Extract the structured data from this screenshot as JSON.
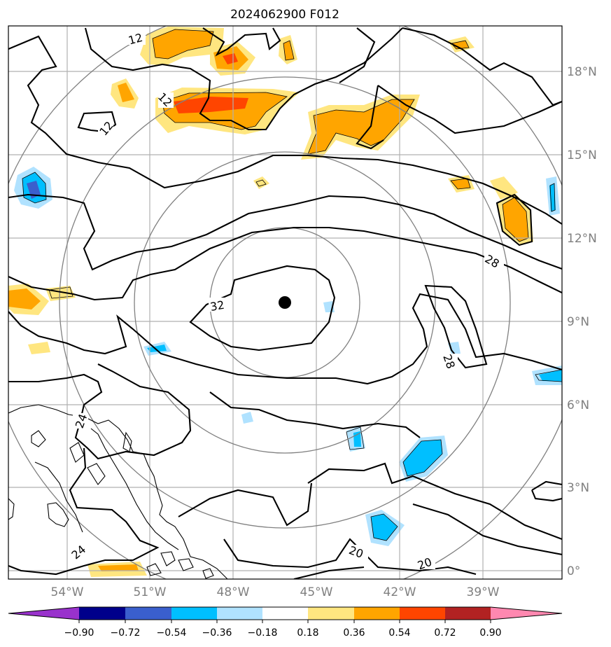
{
  "title": "2024062900 F012",
  "lon_ticks": [
    "54°W",
    "51°W",
    "48°W",
    "45°W",
    "42°W",
    "39°W"
  ],
  "lat_ticks": [
    "18°N",
    "15°N",
    "12°N",
    "9°N",
    "6°N",
    "3°N",
    "0°"
  ],
  "colorbar": {
    "labels": [
      "−0.90",
      "−0.72",
      "−0.54",
      "−0.36",
      "−0.18",
      "0.18",
      "0.36",
      "0.54",
      "0.72",
      "0.90"
    ],
    "colors": [
      "#9932cc",
      "#00008b",
      "#3a5fcd",
      "#00bfff",
      "#b0e2ff",
      "#ffffff",
      "#ffe680",
      "#ffa500",
      "#ff4500",
      "#b22222",
      "#ff88b0"
    ]
  },
  "contour_labels": [
    {
      "text": "12"
    },
    {
      "text": "12"
    },
    {
      "text": "12"
    },
    {
      "text": "32"
    },
    {
      "text": "28"
    },
    {
      "text": "28"
    },
    {
      "text": "24"
    },
    {
      "text": "24"
    },
    {
      "text": "20"
    },
    {
      "text": "20"
    }
  ],
  "storm_center": {
    "lon": -46.0,
    "lat": 9.6
  }
}
